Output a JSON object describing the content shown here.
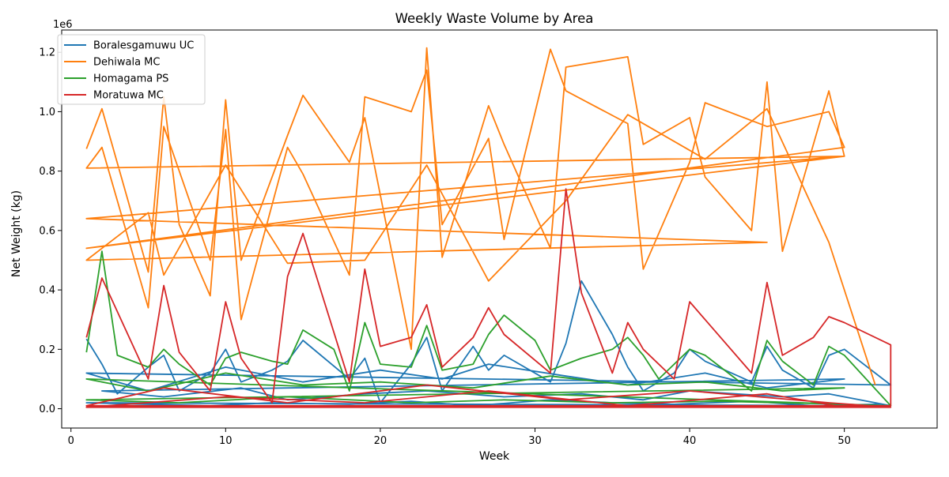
{
  "chart_data": {
    "type": "line",
    "title": "Weekly Waste Volume by Area",
    "xlabel": "Week",
    "ylabel": "Net Weight (kg)",
    "y_offset_label": "1e6",
    "xlim": [
      -0.6,
      56
    ],
    "ylim": [
      -65000,
      1275000
    ],
    "x_ticks": [
      0,
      10,
      20,
      30,
      40,
      50
    ],
    "x_tick_labels": [
      "0",
      "10",
      "20",
      "30",
      "40",
      "50"
    ],
    "y_ticks": [
      0,
      200000,
      400000,
      600000,
      800000,
      1000000,
      1200000
    ],
    "y_tick_labels": [
      "0.0",
      "0.2",
      "0.4",
      "0.6",
      "0.8",
      "1.0",
      "1.2"
    ],
    "grid": false,
    "legend_position": "top-left",
    "series": [
      {
        "name": "Boralesgamuwu UC",
        "color": "#1f77b4",
        "x": [
          1,
          2,
          3,
          5,
          6,
          7,
          9,
          10,
          11,
          13,
          14,
          15,
          18,
          19,
          20,
          22,
          23,
          24,
          26,
          27,
          28,
          31,
          32,
          33,
          35,
          36,
          37,
          39,
          40,
          41,
          44,
          45,
          46,
          48,
          49,
          50,
          53,
          1,
          5,
          10,
          15,
          20,
          24,
          27,
          32,
          36,
          41,
          45,
          50,
          2,
          6,
          11,
          14,
          19,
          23,
          28,
          33,
          37,
          40,
          46,
          49,
          53,
          1,
          9,
          13,
          18,
          22,
          26,
          31,
          35,
          39,
          44,
          48,
          52,
          53
        ],
        "y": [
          235000,
          150000,
          50000,
          140000,
          180000,
          60000,
          120000,
          200000,
          90000,
          130000,
          160000,
          230000,
          100000,
          170000,
          20000,
          150000,
          240000,
          60000,
          210000,
          130000,
          180000,
          90000,
          220000,
          430000,
          250000,
          140000,
          60000,
          120000,
          200000,
          160000,
          90000,
          210000,
          130000,
          70000,
          180000,
          200000,
          80000,
          120000,
          60000,
          140000,
          90000,
          130000,
          100000,
          150000,
          110000,
          80000,
          120000,
          70000,
          100000,
          60000,
          40000,
          70000,
          30000,
          50000,
          60000,
          40000,
          50000,
          30000,
          60000,
          40000,
          50000,
          10000,
          20000,
          10000,
          20000,
          15000,
          25000,
          10000,
          30000,
          20000,
          15000,
          25000,
          10000,
          15000,
          5000
        ]
      },
      {
        "name": "Dehiwala MC",
        "color": "#ff7f0e",
        "x": [
          1,
          2,
          5,
          6,
          7,
          9,
          10,
          11,
          14,
          15,
          18,
          19,
          22,
          23,
          24,
          27,
          28,
          31,
          32,
          36,
          37,
          40,
          41,
          44,
          45,
          46,
          49,
          50,
          1,
          2,
          5,
          6,
          9,
          10,
          11,
          14,
          15,
          18,
          19,
          22,
          23,
          24,
          27,
          28,
          31,
          32,
          36,
          37,
          40,
          41,
          45,
          49,
          50,
          1,
          50,
          1,
          45,
          1,
          5,
          6,
          10,
          14,
          19,
          23,
          27,
          32,
          36,
          41,
          45,
          49,
          52
        ],
        "y": [
          875000,
          1010000,
          460000,
          1050000,
          620000,
          380000,
          1040000,
          500000,
          920000,
          1055000,
          830000,
          980000,
          200000,
          1215000,
          510000,
          1020000,
          890000,
          540000,
          1150000,
          1185000,
          890000,
          980000,
          780000,
          600000,
          1100000,
          530000,
          1070000,
          850000,
          810000,
          880000,
          340000,
          950000,
          500000,
          940000,
          300000,
          880000,
          790000,
          450000,
          1050000,
          1000000,
          1140000,
          620000,
          910000,
          570000,
          1210000,
          1070000,
          960000,
          470000,
          830000,
          1030000,
          950000,
          1000000,
          880000,
          540000,
          850000,
          640000,
          560000,
          500000,
          660000,
          450000,
          820000,
          490000,
          500000,
          820000,
          430000,
          700000,
          990000,
          840000,
          1010000,
          560000,
          80000
        ]
      },
      {
        "name": "Homagama PS",
        "color": "#2ca02c",
        "x": [
          1,
          2,
          3,
          5,
          6,
          7,
          9,
          10,
          11,
          13,
          14,
          15,
          17,
          18,
          19,
          20,
          22,
          23,
          24,
          26,
          27,
          28,
          30,
          31,
          32,
          33,
          35,
          36,
          37,
          38,
          40,
          41,
          42,
          44,
          45,
          46,
          48,
          49,
          50,
          53,
          1,
          5,
          10,
          15,
          20,
          26,
          31,
          36,
          41,
          46,
          50,
          1,
          7,
          14,
          22,
          28,
          35,
          42,
          50
        ],
        "y": [
          190000,
          530000,
          180000,
          140000,
          200000,
          150000,
          80000,
          170000,
          190000,
          160000,
          150000,
          265000,
          200000,
          60000,
          290000,
          150000,
          140000,
          280000,
          130000,
          150000,
          250000,
          315000,
          230000,
          130000,
          150000,
          170000,
          200000,
          240000,
          180000,
          100000,
          200000,
          180000,
          140000,
          60000,
          230000,
          160000,
          80000,
          210000,
          180000,
          10000,
          100000,
          60000,
          120000,
          80000,
          90000,
          70000,
          110000,
          80000,
          90000,
          60000,
          70000,
          30000,
          20000,
          40000,
          20000,
          30000,
          20000,
          25000,
          15000
        ]
      },
      {
        "name": "Moratuwa MC",
        "color": "#d62728",
        "x": [
          1,
          2,
          5,
          6,
          7,
          9,
          10,
          11,
          13,
          14,
          15,
          18,
          19,
          20,
          22,
          23,
          24,
          26,
          27,
          28,
          31,
          32,
          33,
          35,
          36,
          37,
          39,
          40,
          41,
          44,
          45,
          46,
          48,
          49,
          50,
          53,
          53,
          1,
          6,
          14,
          23,
          32,
          40,
          49,
          53,
          1,
          10,
          19,
          27,
          36,
          45,
          50
        ],
        "y": [
          240000,
          440000,
          100000,
          415000,
          190000,
          60000,
          360000,
          170000,
          20000,
          445000,
          590000,
          90000,
          470000,
          210000,
          240000,
          350000,
          140000,
          240000,
          340000,
          250000,
          120000,
          740000,
          390000,
          120000,
          290000,
          200000,
          100000,
          360000,
          300000,
          120000,
          425000,
          180000,
          240000,
          310000,
          290000,
          215000,
          10000,
          10000,
          70000,
          20000,
          80000,
          30000,
          60000,
          20000,
          5000,
          5000,
          40000,
          20000,
          60000,
          10000,
          50000,
          5000
        ]
      }
    ]
  }
}
